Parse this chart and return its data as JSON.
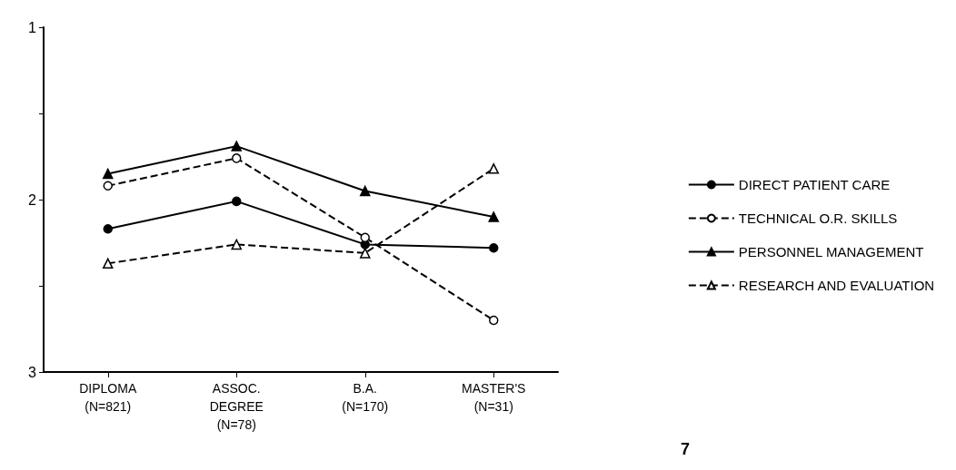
{
  "chart_data": {
    "type": "line",
    "categories": [
      "DIPLOMA\n(N=821)",
      "ASSOC.\nDEGREE\n(N=78)",
      "B.A.\n(N=170)",
      "MASTER'S\n(N=31)"
    ],
    "ylim": [
      3,
      1
    ],
    "yticks": [
      1,
      {
        "value": 1.5,
        "label": null
      },
      2,
      {
        "value": 2.5,
        "label": null
      },
      3
    ],
    "grid": false,
    "legend": "right",
    "series": [
      {
        "name": "DIRECT PATIENT CARE",
        "color": "#000000",
        "marker": "circle",
        "line_style": "solid",
        "values": [
          2.17,
          2.01,
          2.26,
          2.28
        ]
      },
      {
        "name": "TECHNICAL O.R. SKILLS",
        "color": "#000000",
        "marker": "circle",
        "line_style": "dashed",
        "values": [
          1.92,
          1.76,
          2.22,
          2.7
        ]
      },
      {
        "name": "PERSONNEL MANAGEMENT",
        "color": "#000000",
        "marker": "triangle",
        "line_style": "solid",
        "values": [
          1.85,
          1.69,
          1.95,
          2.1
        ]
      },
      {
        "name": "RESEARCH AND EVALUATION",
        "color": "#000000",
        "marker": "triangle",
        "line_style": "dashed",
        "values": [
          2.37,
          2.26,
          2.31,
          1.82
        ]
      }
    ],
    "annotations": [
      "7"
    ]
  }
}
